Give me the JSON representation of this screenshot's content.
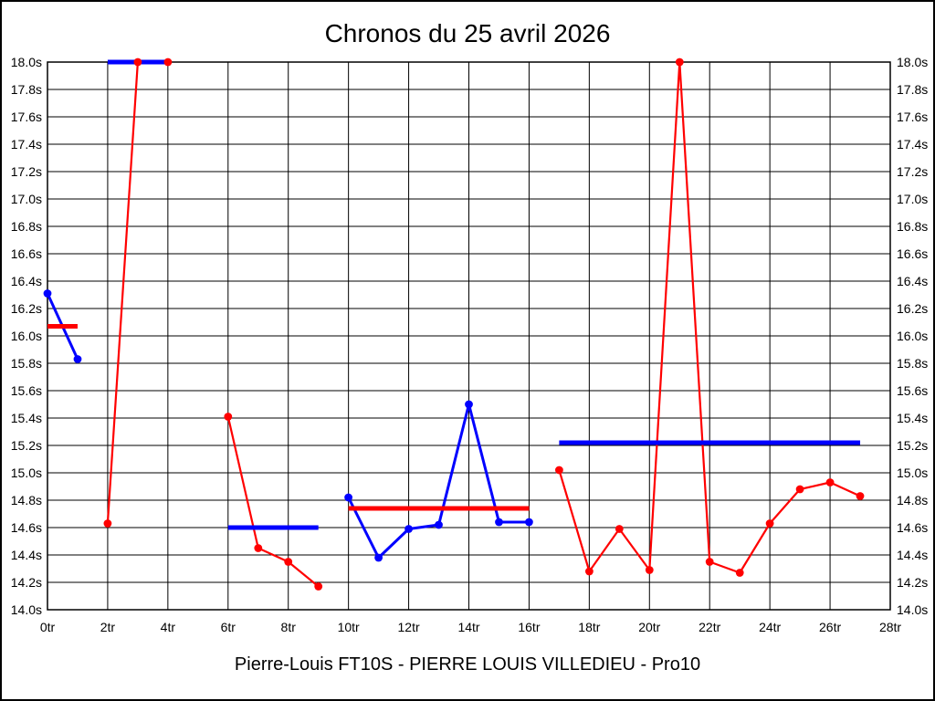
{
  "title": "Chronos du 25 avril 2026",
  "footer": "Pierre-Louis FT10S - PIERRE LOUIS VILLEDIEU - Pro10",
  "chart_data": {
    "type": "line",
    "title": "Chronos du 25 avril 2026",
    "footer": "Pierre-Louis FT10S - PIERRE LOUIS VILLEDIEU - Pro10",
    "x_unit": "tr",
    "y_unit": "s",
    "xlim": [
      0,
      28
    ],
    "ylim": [
      14.0,
      18.0
    ],
    "x_tick_step": 2,
    "y_step": 0.2,
    "grid": true,
    "grid_color": "#000000",
    "background_color": "#ffffff",
    "x_tick_labels": [
      "0tr",
      "2tr",
      "4tr",
      "6tr",
      "8tr",
      "10tr",
      "12tr",
      "14tr",
      "16tr",
      "18tr",
      "20tr",
      "22tr",
      "24tr",
      "26tr",
      "28tr"
    ],
    "y_tick_labels": [
      "18.0s",
      "17.8s",
      "17.6s",
      "17.4s",
      "17.2s",
      "17.0s",
      "16.8s",
      "16.6s",
      "16.4s",
      "16.2s",
      "16.0s",
      "15.8s",
      "15.6s",
      "15.4s",
      "15.2s",
      "15.0s",
      "14.8s",
      "14.6s",
      "14.4s",
      "14.2s",
      "14.0s"
    ],
    "series": [
      {
        "name": "laps-blue",
        "color": "#0000ff",
        "segments": [
          {
            "points": [
              [
                0,
                16.31
              ],
              [
                1,
                15.83
              ]
            ]
          },
          {
            "points": [
              [
                10,
                14.82
              ],
              [
                11,
                14.38
              ],
              [
                12,
                14.59
              ],
              [
                13,
                14.62
              ],
              [
                14,
                15.5
              ],
              [
                15,
                14.64
              ],
              [
                16,
                14.64
              ]
            ]
          }
        ]
      },
      {
        "name": "laps-red",
        "color": "#ff0000",
        "segments": [
          {
            "points": [
              [
                2,
                14.63
              ],
              [
                3,
                18.0
              ],
              [
                4,
                18.0
              ]
            ]
          },
          {
            "points": [
              [
                6,
                15.41
              ],
              [
                7,
                14.45
              ],
              [
                8,
                14.35
              ],
              [
                9,
                14.17
              ]
            ]
          },
          {
            "points": [
              [
                17,
                15.02
              ],
              [
                18,
                14.28
              ],
              [
                19,
                14.59
              ],
              [
                20,
                14.29
              ],
              [
                21,
                18.0
              ],
              [
                22,
                14.35
              ],
              [
                23,
                14.27
              ],
              [
                24,
                14.63
              ],
              [
                25,
                14.88
              ],
              [
                26,
                14.93
              ],
              [
                27,
                14.83
              ]
            ]
          }
        ]
      }
    ],
    "average_bars": [
      {
        "for_series": "laps-blue",
        "color": "#ff0000",
        "from": 0,
        "to": 1,
        "value": 16.07
      },
      {
        "for_series": "laps-red",
        "color": "#0000ff",
        "from": 2,
        "to": 4,
        "value": 18.0
      },
      {
        "for_series": "laps-red",
        "color": "#0000ff",
        "from": 6,
        "to": 9,
        "value": 14.6
      },
      {
        "for_series": "laps-blue",
        "color": "#ff0000",
        "from": 10,
        "to": 16,
        "value": 14.74
      },
      {
        "for_series": "laps-red",
        "color": "#0000ff",
        "from": 17,
        "to": 27,
        "value": 15.22
      }
    ]
  }
}
